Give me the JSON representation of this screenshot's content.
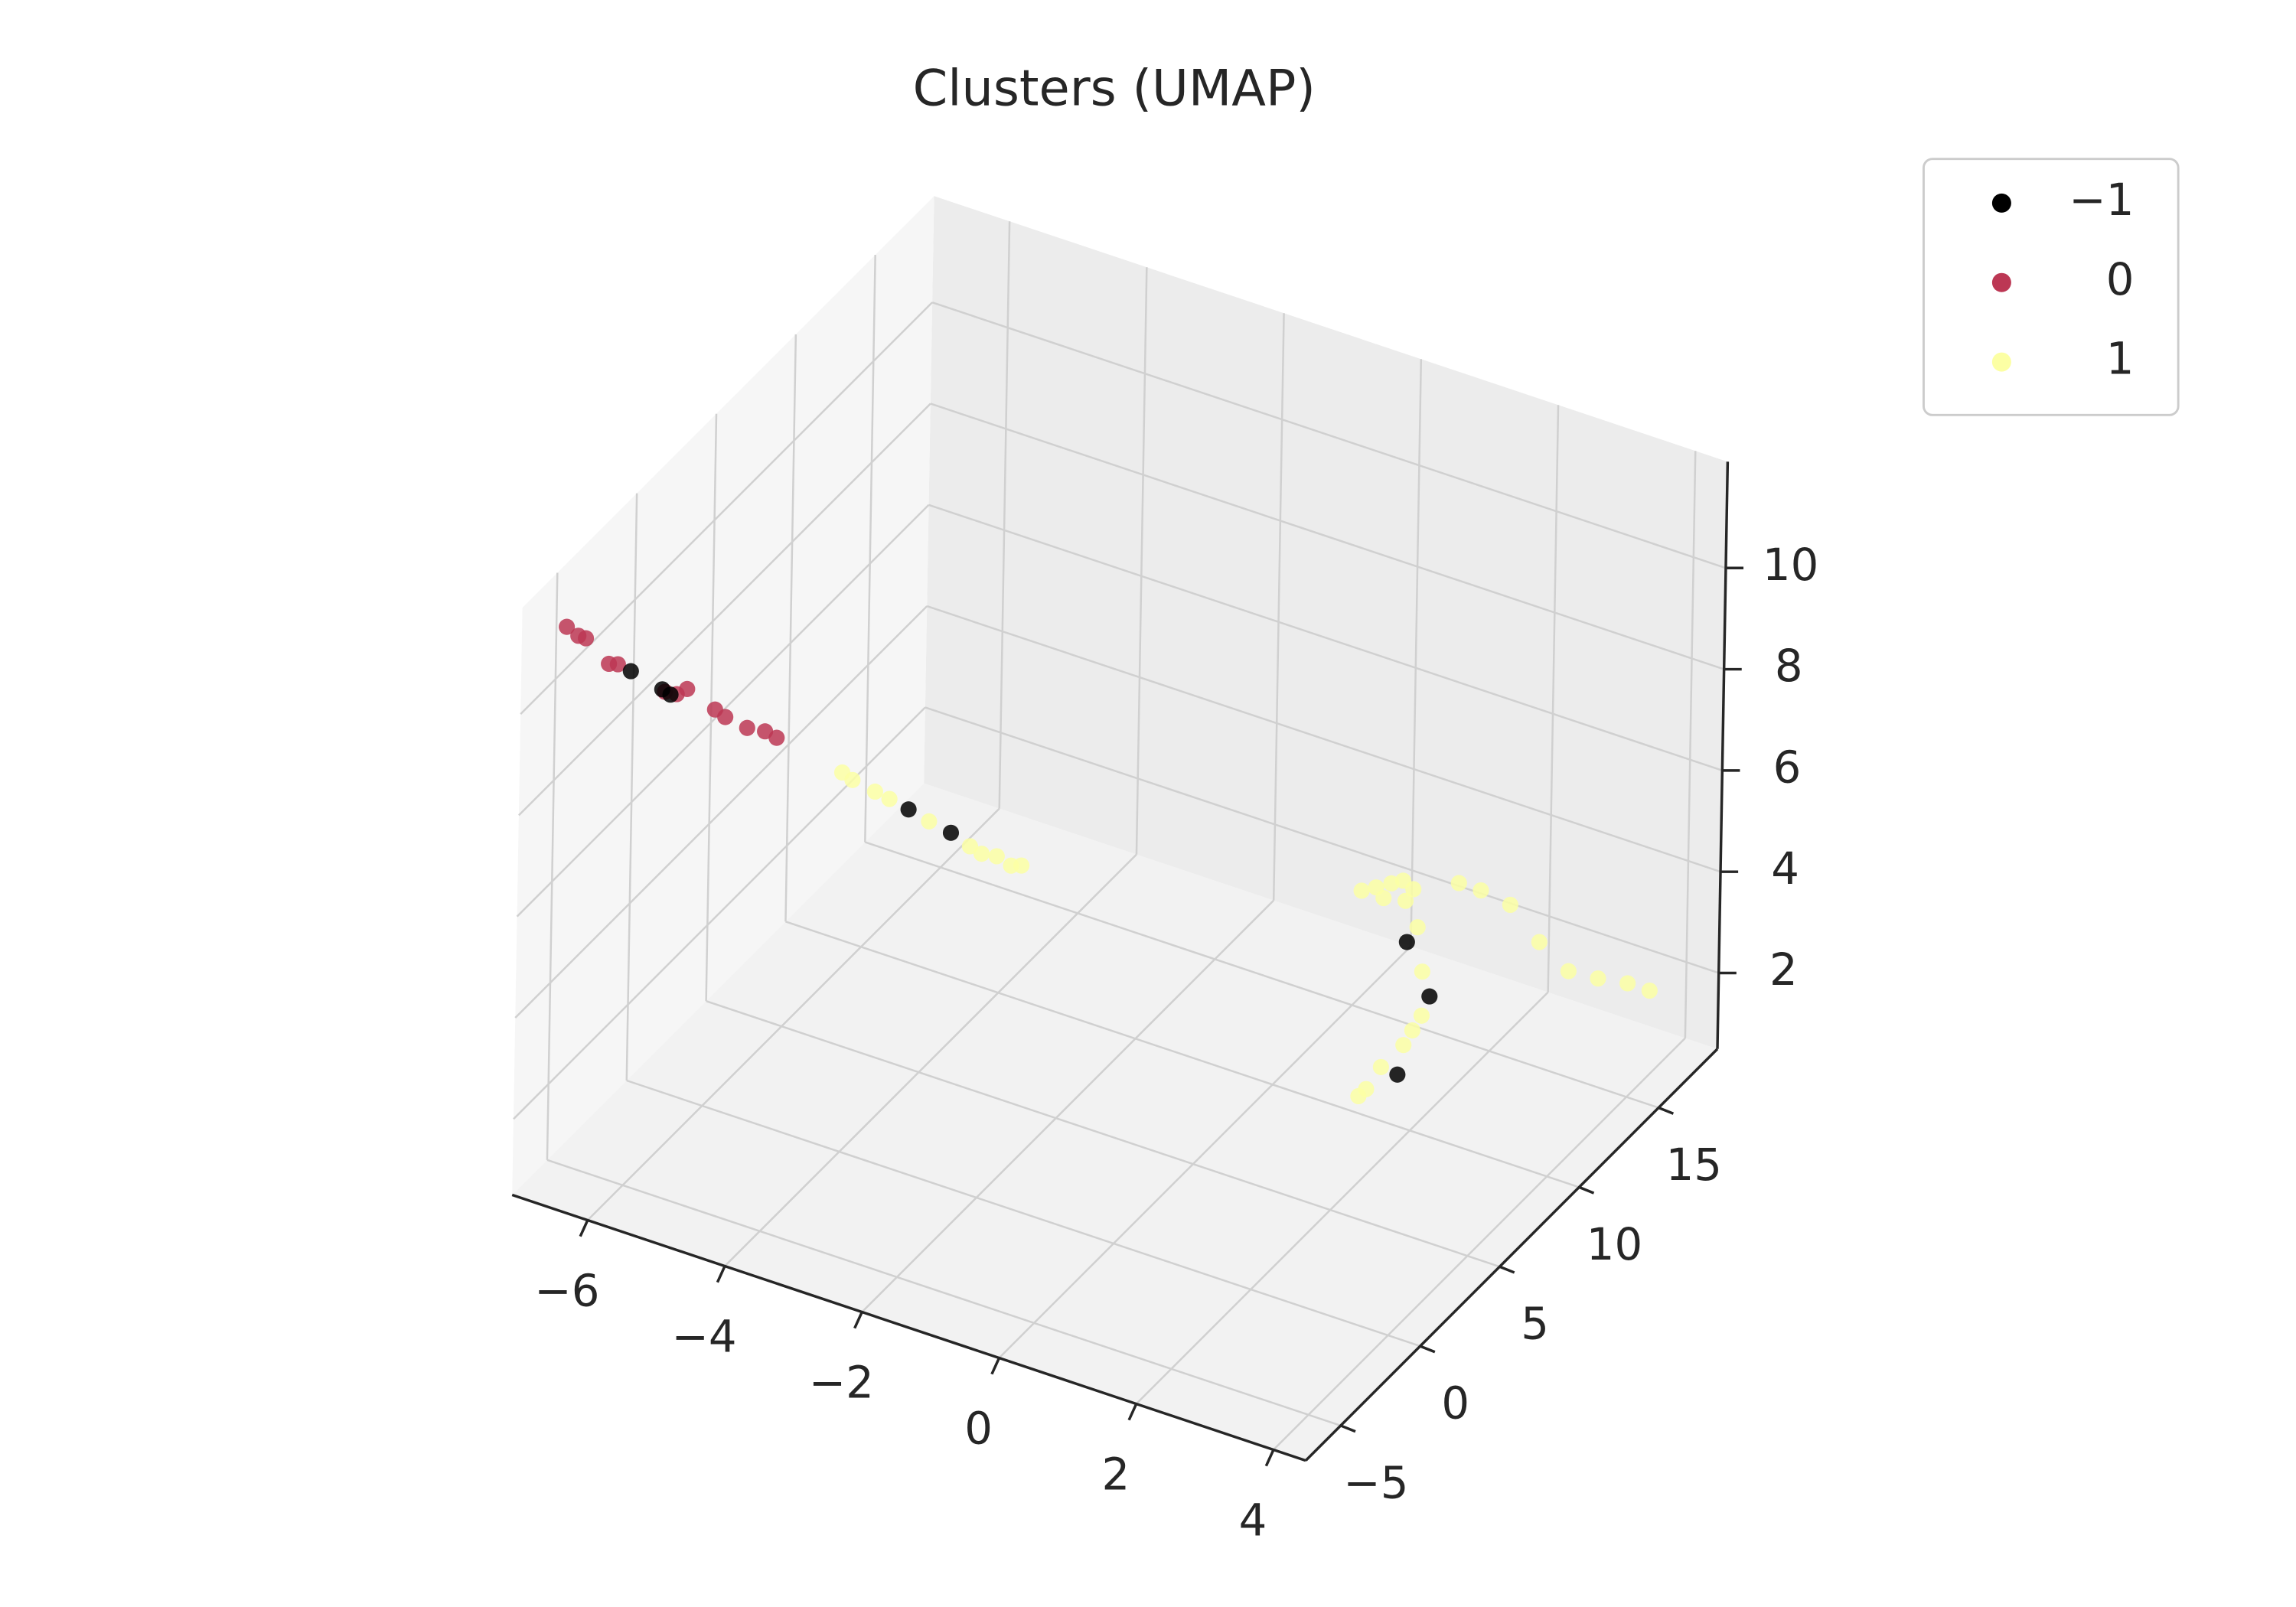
{
  "chart_data": {
    "type": "scatter3d",
    "title": "Clusters (UMAP)",
    "xlim": [
      -7.1,
      4.47
    ],
    "ylim": [
      -7.2,
      18.7
    ],
    "zlim": [
      0.5,
      12.1
    ],
    "xticks": [
      {
        "value": -6,
        "label": "−6"
      },
      {
        "value": -4,
        "label": "−4"
      },
      {
        "value": -2,
        "label": "−2"
      },
      0,
      2,
      4
    ],
    "yticks": [
      {
        "value": -5,
        "label": "−5"
      },
      0,
      5,
      10,
      15
    ],
    "zticks": [
      2,
      4,
      6,
      8,
      10
    ],
    "grid": true,
    "legend": "upper right outside",
    "series": [
      {
        "name": "−1",
        "color": "#000000",
        "x": [
          -6.01,
          -5.55,
          -5.43,
          -1.95,
          -1.33,
          0.78,
          1.8,
          2.26
        ],
        "y": [
          -5,
          -5,
          -5,
          -5,
          -5,
          15,
          12,
          8
        ],
        "z": [
          10.65,
          10.5,
          10.45,
          9.76,
          9.58,
          2.1,
          2.43,
          2.35
        ]
      },
      {
        "name": "0",
        "color": "#bc3754",
        "x": [
          -6.95,
          -6.78,
          -6.67,
          -6.33,
          -6.2,
          -5.51,
          -5.34,
          -5.19,
          -4.78,
          -4.63,
          -4.31,
          -4.05,
          -3.88
        ],
        "y": [
          -5,
          -5,
          -5,
          -5,
          -5,
          -5,
          -5,
          -5,
          -5,
          -5,
          -5,
          -5,
          -5
        ],
        "z": [
          11.1,
          11.0,
          11.0,
          10.65,
          10.7,
          10.47,
          10.5,
          10.67,
          10.45,
          10.37,
          10.3,
          10.35,
          10.3
        ]
      },
      {
        "name": "1",
        "color": "#fcffa4",
        "x": [
          -2.92,
          -2.77,
          -2.44,
          -2.23,
          -1.65,
          -1.05,
          -0.88,
          -0.66,
          -0.45,
          -0.3,
          0.11,
          0.32,
          0.54,
          0.71,
          0.86,
          0.43,
          0.75,
          0.93,
          1.01,
          1.69,
          1.56,
          2.34,
          2.02,
          1.81,
          1.7,
          0.84,
          1.16,
          1.59,
          2.02,
          2.45,
          2.88,
          3.31,
          3.63
        ],
        "y": [
          -5,
          -5,
          -5,
          -5,
          -5,
          -5,
          -5,
          -5,
          -5,
          -5,
          15,
          15,
          15,
          15,
          15,
          15,
          15,
          15,
          15,
          12,
          12,
          8,
          8,
          8,
          8,
          18,
          18,
          18,
          18,
          18,
          18,
          18,
          18
        ],
        "z": [
          10.05,
          9.97,
          9.89,
          9.84,
          9.66,
          9.44,
          9.37,
          9.42,
          9.33,
          9.4,
          2.81,
          2.97,
          3.15,
          3.28,
          3.18,
          2.81,
          2.9,
          2.46,
          1.62,
          2.0,
          1.65,
          2.97,
          2.39,
          1.86,
          1.67,
          2.35,
          2.35,
          2.26,
          1.72,
          1.34,
          1.39,
          1.49,
          1.49
        ]
      }
    ]
  }
}
